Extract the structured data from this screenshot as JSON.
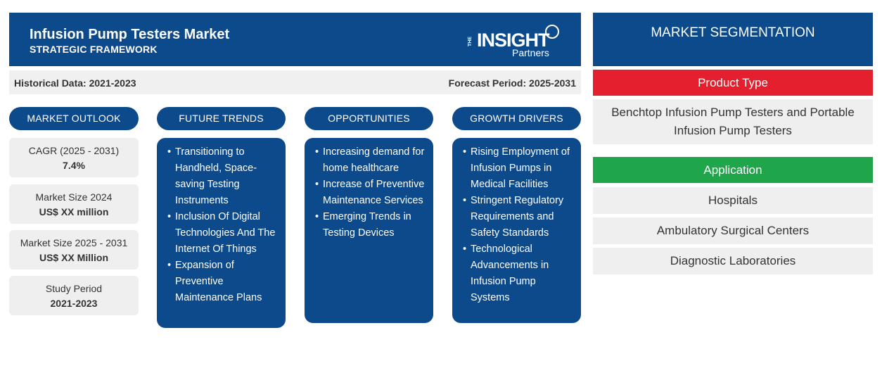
{
  "header": {
    "title": "Infusion Pump Testers Market",
    "subtitle": "STRATEGIC FRAMEWORK",
    "logo_the": "THE",
    "logo_main": "INSIGHT",
    "logo_sub": "Partners"
  },
  "periods": {
    "historical": "Historical Data: 2021-2023",
    "forecast": "Forecast Period: 2025-2031"
  },
  "columns": {
    "outlook": "MARKET OUTLOOK",
    "trends": "FUTURE TRENDS",
    "opportunities": "OPPORTUNITIES",
    "drivers": "GROWTH DRIVERS"
  },
  "outlook": [
    {
      "label": "CAGR (2025 - 2031)",
      "value": "7.4%"
    },
    {
      "label": "Market Size 2024",
      "value": "US$ XX million"
    },
    {
      "label": "Market Size 2025 - 2031",
      "value": "US$ XX Million"
    },
    {
      "label": "Study Period",
      "value": "2021-2023"
    }
  ],
  "trends": [
    "Transitioning to Handheld, Space-saving Testing Instruments",
    "Inclusion Of Digital Technologies And The Internet Of Things",
    "Expansion of Preventive Maintenance Plans"
  ],
  "opportunities": [
    "Increasing demand for home healthcare",
    "Increase of Preventive Maintenance Services",
    "Emerging Trends in Testing Devices"
  ],
  "drivers": [
    "Rising Employment of Infusion Pumps in Medical Facilities",
    "Stringent Regulatory Requirements and Safety Standards",
    "Technological Advancements in Infusion Pump Systems"
  ],
  "segmentation": {
    "title": "MARKET SEGMENTATION",
    "product_type": {
      "title": "Product Type",
      "items": [
        "Benchtop Infusion Pump Testers and Portable Infusion Pump Testers"
      ]
    },
    "application": {
      "title": "Application",
      "items": [
        "Hospitals",
        "Ambulatory Surgical Centers",
        "Diagnostic Laboratories"
      ]
    }
  },
  "colors": {
    "navy": "#0d4a8c",
    "red": "#e5202e",
    "green": "#1fa64a",
    "panel_gray": "#efefef"
  }
}
